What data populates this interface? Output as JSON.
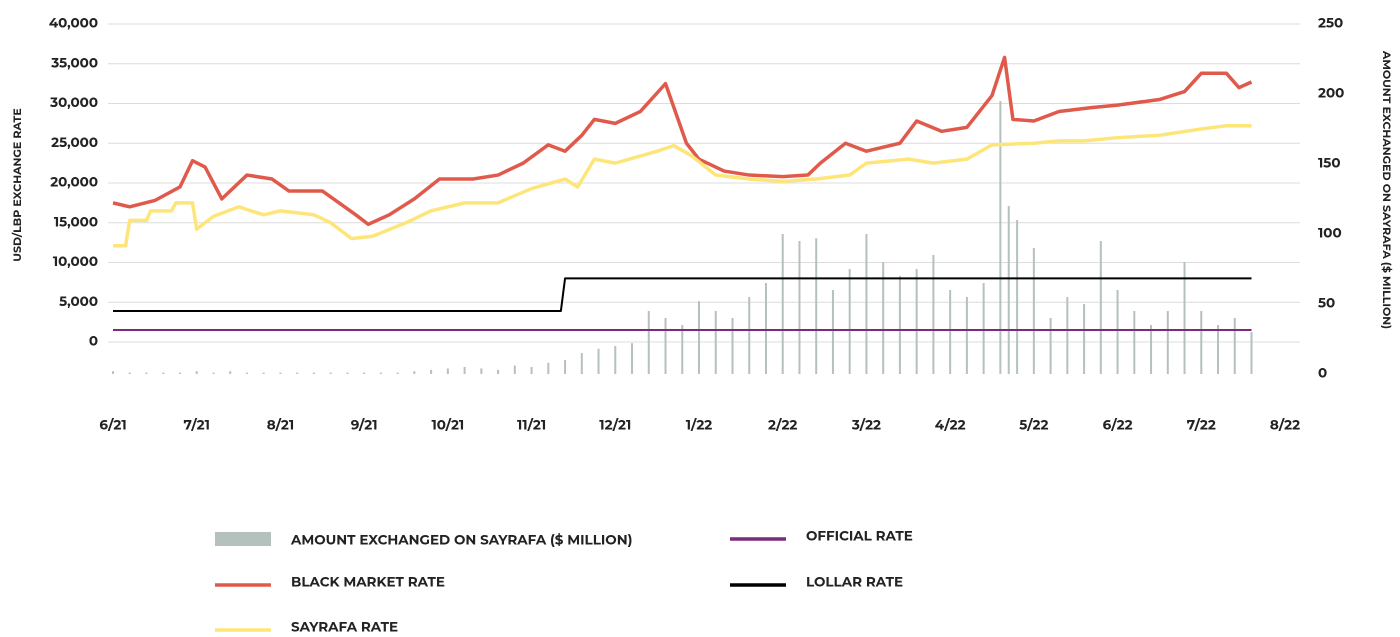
{
  "chart_data": {
    "type": "combo",
    "ylabel": "USD/LBP EXCHANGE RATE",
    "y2label": "AMOUNT EXCHANGED ON SAYRAFA ($ MILLION)",
    "xlim": [
      0,
      14
    ],
    "xticks": [
      {
        "value": 0,
        "label": "6/21"
      },
      {
        "value": 1,
        "label": "7/21"
      },
      {
        "value": 2,
        "label": "8/21"
      },
      {
        "value": 3,
        "label": "9/21"
      },
      {
        "value": 4,
        "label": "10/21"
      },
      {
        "value": 5,
        "label": "11/21"
      },
      {
        "value": 6,
        "label": "12/21"
      },
      {
        "value": 7,
        "label": "1/22"
      },
      {
        "value": 8,
        "label": "2/22"
      },
      {
        "value": 9,
        "label": "3/22"
      },
      {
        "value": 10,
        "label": "4/22"
      },
      {
        "value": 11,
        "label": "5/22"
      },
      {
        "value": 12,
        "label": "6/22"
      },
      {
        "value": 13,
        "label": "7/22"
      },
      {
        "value": 14,
        "label": "8/22"
      }
    ],
    "ylim": [
      0,
      40000
    ],
    "yticks": [
      0,
      {
        "value": 5000,
        "label": "5,000"
      },
      {
        "value": 10000,
        "label": "10,000"
      },
      {
        "value": 15000,
        "label": "15,000"
      },
      {
        "value": 20000,
        "label": "20,000"
      },
      {
        "value": 25000,
        "label": "25,000"
      },
      {
        "value": 30000,
        "label": "30,000"
      },
      {
        "value": 35000,
        "label": "35,000"
      },
      {
        "value": 40000,
        "label": "40,000"
      }
    ],
    "y2lim": [
      0,
      250
    ],
    "y2ticks": [
      0,
      50,
      100,
      150,
      200,
      250
    ],
    "grid": true,
    "series": [
      {
        "name": "AMOUNT EXCHANGED ON SAYRAFA ($ MILLION)",
        "type": "bar",
        "axis": "y2",
        "color": "#b5c1bd",
        "x": [
          0,
          0.2,
          0.4,
          0.6,
          0.8,
          1,
          1.2,
          1.4,
          1.6,
          1.8,
          2,
          2.2,
          2.4,
          2.6,
          2.8,
          3,
          3.2,
          3.4,
          3.6,
          3.8,
          4,
          4.2,
          4.4,
          4.6,
          4.8,
          5,
          5.2,
          5.4,
          5.6,
          5.8,
          6,
          6.2,
          6.4,
          6.6,
          6.8,
          7,
          7.2,
          7.4,
          7.6,
          7.8,
          8,
          8.2,
          8.4,
          8.6,
          8.8,
          9,
          9.2,
          9.4,
          9.6,
          9.8,
          10,
          10.2,
          10.4,
          10.6,
          10.7,
          10.8,
          11,
          11.2,
          11.4,
          11.6,
          11.8,
          12,
          12.2,
          12.4,
          12.6,
          12.8,
          13,
          13.2,
          13.4,
          13.6
        ],
        "values": [
          2,
          1,
          1,
          1,
          1,
          2,
          1,
          2,
          1,
          1,
          1,
          1,
          1,
          1,
          1,
          1,
          1,
          1,
          2,
          3,
          4,
          5,
          4,
          3,
          6,
          5,
          8,
          10,
          15,
          18,
          20,
          22,
          45,
          40,
          35,
          52,
          45,
          40,
          55,
          65,
          100,
          95,
          97,
          60,
          75,
          100,
          80,
          70,
          75,
          85,
          60,
          55,
          65,
          195,
          120,
          110,
          90,
          40,
          55,
          50,
          95,
          60,
          45,
          35,
          45,
          80,
          45,
          35,
          40,
          30
        ]
      },
      {
        "name": "OFFICIAL RATE",
        "type": "line",
        "color": "#7b2a7f",
        "width": 2,
        "x": [
          0,
          13.6
        ],
        "values": [
          1507,
          1507
        ]
      },
      {
        "name": "BLACK MARKET RATE",
        "type": "line",
        "color": "#e05a4c",
        "width": 3.5,
        "x": [
          0,
          0.2,
          0.5,
          0.8,
          0.95,
          1.1,
          1.3,
          1.6,
          1.9,
          2.1,
          2.5,
          2.9,
          3.05,
          3.3,
          3.6,
          3.9,
          4.3,
          4.6,
          4.9,
          5.2,
          5.4,
          5.6,
          5.75,
          6,
          6.3,
          6.6,
          6.85,
          7,
          7.3,
          7.6,
          8,
          8.3,
          8.45,
          8.75,
          9,
          9.4,
          9.6,
          9.9,
          10.2,
          10.5,
          10.65,
          10.75,
          11,
          11.3,
          11.7,
          12,
          12.5,
          12.8,
          13,
          13.3,
          13.45,
          13.6
        ],
        "values": [
          17500,
          17000,
          17800,
          19500,
          22800,
          22000,
          18000,
          21000,
          20500,
          19000,
          19000,
          16000,
          14800,
          16000,
          18000,
          20500,
          20500,
          21000,
          22500,
          24800,
          24000,
          26000,
          28000,
          27500,
          29000,
          32500,
          25000,
          23000,
          21500,
          21000,
          20800,
          21000,
          22500,
          25000,
          24000,
          25000,
          27800,
          26500,
          27000,
          31000,
          35800,
          28000,
          27800,
          29000,
          29500,
          29800,
          30500,
          31500,
          33800,
          33800,
          32000,
          32700
        ]
      },
      {
        "name": "LOLLAR RATE",
        "type": "line",
        "color": "#000000",
        "width": 2,
        "x": [
          0,
          5.35,
          5.4,
          13.6
        ],
        "values": [
          3900,
          3900,
          8000,
          8000
        ]
      },
      {
        "name": "SAYRAFA RATE",
        "type": "line",
        "color": "#fde57a",
        "width": 3.5,
        "x": [
          0,
          0.15,
          0.2,
          0.4,
          0.45,
          0.7,
          0.75,
          0.95,
          1,
          1.2,
          1.5,
          1.8,
          2,
          2.4,
          2.6,
          2.85,
          3.1,
          3.5,
          3.8,
          4.2,
          4.6,
          5,
          5.4,
          5.55,
          5.75,
          6,
          6.5,
          6.7,
          6.9,
          7.2,
          7.6,
          8,
          8.4,
          8.8,
          9,
          9.5,
          9.8,
          10.2,
          10.5,
          11,
          11.3,
          11.6,
          12,
          12.5,
          13,
          13.3,
          13.6
        ],
        "values": [
          12100,
          12100,
          15300,
          15300,
          16500,
          16500,
          17500,
          17500,
          14200,
          15800,
          17000,
          16000,
          16500,
          16000,
          15000,
          13000,
          13300,
          15000,
          16500,
          17500,
          17500,
          19300,
          20500,
          19500,
          23000,
          22500,
          24000,
          24700,
          23500,
          21000,
          20500,
          20200,
          20500,
          21000,
          22500,
          23000,
          22500,
          23000,
          24800,
          25000,
          25300,
          25300,
          25700,
          26000,
          26800,
          27200,
          27200
        ]
      }
    ]
  }
}
